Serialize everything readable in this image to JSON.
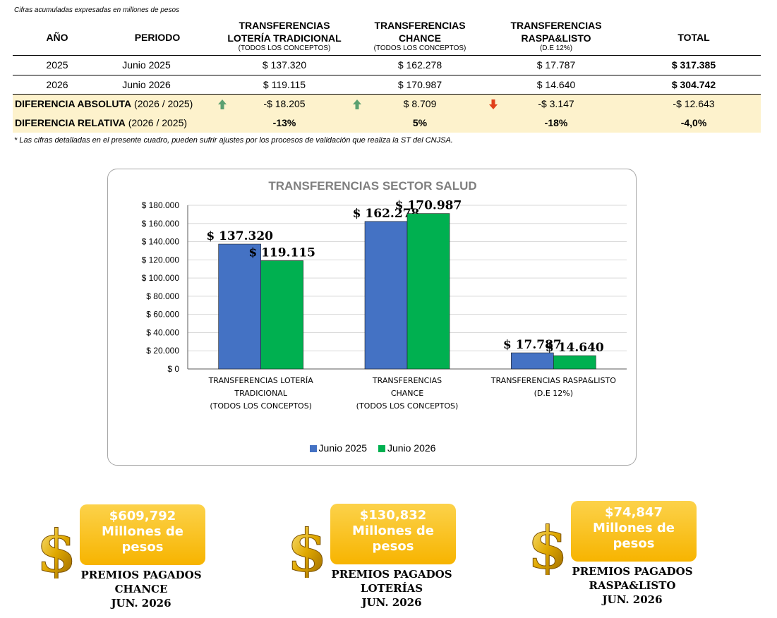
{
  "table": {
    "note_top": "Cifras acumuladas expresadas en millones de pesos",
    "headers": {
      "year": "AÑO",
      "period": "PERIODO",
      "col1_line1": "TRANSFERENCIAS",
      "col1_line2": "LOTERÍA TRADICIONAL",
      "col1_sub": "(TODOS LOS CONCEPTOS)",
      "col2_line1": "TRANSFERENCIAS",
      "col2_line2": "CHANCE",
      "col2_sub": "(TODOS LOS CONCEPTOS)",
      "col3_line1": "TRANSFERENCIAS",
      "col3_line2": "RASPA&LISTO",
      "col3_sub": "(D.E 12%)",
      "total": "TOTAL"
    },
    "rows": [
      {
        "year": "2025",
        "period": "Junio 2025",
        "loteria": "$ 137.320",
        "chance": "$ 162.278",
        "raspa": "$ 17.787",
        "total": "$ 317.385"
      },
      {
        "year": "2026",
        "period": "Junio 2026",
        "loteria": "$ 119.115",
        "chance": "$ 170.987",
        "raspa": "$ 14.640",
        "total": "$ 304.742"
      }
    ],
    "abs_diff": {
      "label": "DIFERENCIA ABSOLUTA",
      "label_range": "(2026 / 2025)",
      "loteria": "-$ 18.205",
      "chance": "$ 8.709",
      "raspa": "-$ 3.147",
      "total": "-$ 12.643",
      "arrows": [
        "arrow-up-icon",
        "arrow-up-icon",
        "arrow-down-icon"
      ]
    },
    "rel_diff": {
      "label": "DIFERENCIA RELATIVA",
      "label_range": "(2026 / 2025)",
      "loteria": "-13%",
      "chance": "5%",
      "raspa": "-18%",
      "total": "-4,0%"
    },
    "note_bottom": "* Las cifras detalladas en el presente cuadro, pueden sufrir ajustes por los procesos de validación que realiza la ST del CNJSA."
  },
  "chart_data": {
    "type": "bar",
    "title": "TRANSFERENCIAS SECTOR SALUD",
    "categories": [
      [
        "TRANSFERENCIAS LOTERÍA",
        "TRADICIONAL",
        "(TODOS LOS CONCEPTOS)"
      ],
      [
        "TRANSFERENCIAS",
        "CHANCE",
        "(TODOS LOS CONCEPTOS)"
      ],
      [
        "TRANSFERENCIAS RASPA&LISTO",
        "(D.E 12%)"
      ]
    ],
    "series": [
      {
        "name": "Junio 2025",
        "color": "#4472c4",
        "values": [
          137320,
          162278,
          17787
        ],
        "labels": [
          "$ 137.320",
          "$ 162.278",
          "$ 17.787"
        ]
      },
      {
        "name": "Junio 2026",
        "color": "#00b050",
        "values": [
          119115,
          170987,
          14640
        ],
        "labels": [
          "$ 119.115",
          "$ 170.987",
          "$ 14.640"
        ]
      }
    ],
    "ylim": [
      0,
      180000
    ],
    "yticks": [
      0,
      20000,
      40000,
      60000,
      80000,
      100000,
      120000,
      140000,
      160000,
      180000
    ],
    "ytick_labels": [
      "$ 0",
      "$ 20.000",
      "$ 40.000",
      "$ 60.000",
      "$ 80.000",
      "$ 100.000",
      "$ 120.000",
      "$ 140.000",
      "$ 160.000",
      "$ 180.000"
    ],
    "grid": true,
    "legend_position": "bottom"
  },
  "cards": [
    {
      "amount": "$609,792",
      "unit1": "Millones de",
      "unit2": "pesos",
      "label1": "PREMIOS PAGADOS",
      "label2": "CHANCE",
      "label3": "JUN. 2026",
      "icon": "dollar-sign-icon"
    },
    {
      "amount": "$130,832",
      "unit1": "Millones de",
      "unit2": "pesos",
      "label1": "PREMIOS PAGADOS",
      "label2": "LOTERÍAS",
      "label3": "JUN. 2026",
      "icon": "dollar-sign-icon"
    },
    {
      "amount": "$74,847",
      "unit1": "Millones de",
      "unit2": "pesos",
      "label1": "PREMIOS PAGADOS",
      "label2": "RASPA&LISTO",
      "label3": "JUN. 2026",
      "icon": "dollar-sign-icon"
    }
  ]
}
